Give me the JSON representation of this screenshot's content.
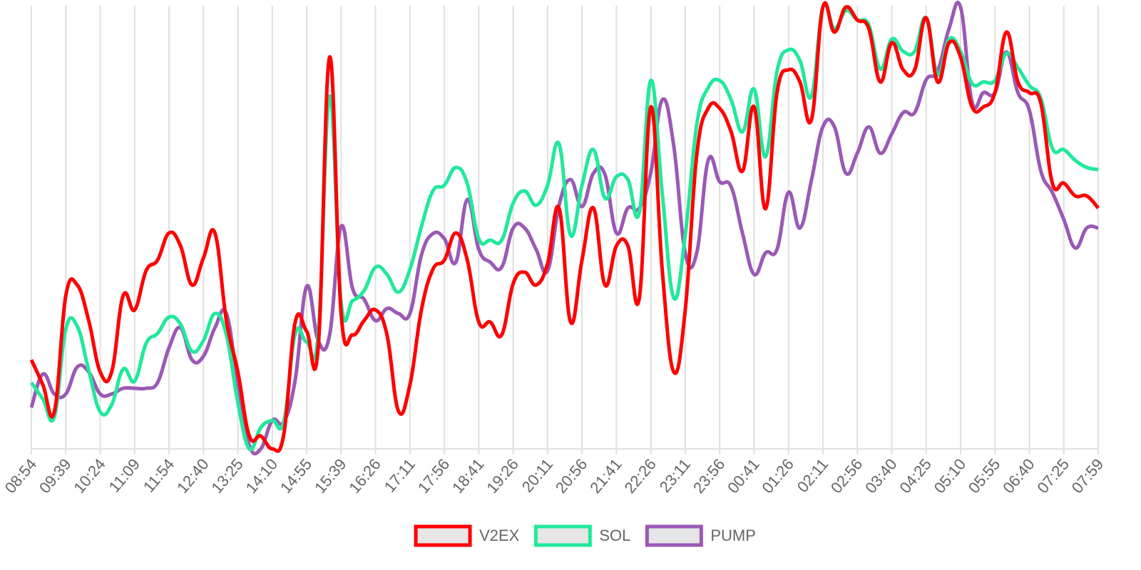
{
  "chart_data": {
    "type": "line",
    "categories": [
      "08:54",
      null,
      null,
      "09:39",
      null,
      null,
      "10:24",
      null,
      null,
      "11:09",
      null,
      null,
      "11:54",
      null,
      null,
      "12:40",
      null,
      null,
      "13:25",
      null,
      null,
      "14:10",
      null,
      null,
      "14:55",
      null,
      null,
      "15:39",
      null,
      null,
      "16:26",
      null,
      null,
      "17:11",
      null,
      null,
      "17:56",
      null,
      null,
      "18:41",
      null,
      null,
      "19:26",
      null,
      null,
      "20:11",
      null,
      null,
      "20:56",
      null,
      null,
      "21:41",
      null,
      null,
      "22:26",
      null,
      null,
      "23:11",
      null,
      null,
      "23:56",
      null,
      null,
      "00:41",
      null,
      null,
      "01:26",
      null,
      null,
      "02:11",
      null,
      null,
      "02:56",
      null,
      null,
      "03:40",
      null,
      null,
      "04:25",
      null,
      null,
      "05:10",
      null,
      null,
      "05:55",
      null,
      null,
      "06:40",
      null,
      null,
      "07:25",
      null,
      null,
      "07:59"
    ],
    "series": [
      {
        "name": "V2EX",
        "color": "#ff0000",
        "values": [
          125,
          90,
          52,
          215,
          230,
          180,
          108,
          108,
          215,
          195,
          250,
          265,
          303,
          285,
          230,
          268,
          303,
          180,
          108,
          18,
          18,
          0,
          20,
          178,
          165,
          142,
          550,
          190,
          160,
          180,
          195,
          160,
          53,
          90,
          195,
          252,
          265,
          303,
          265,
          178,
          178,
          160,
          232,
          248,
          230,
          260,
          338,
          178,
          265,
          338,
          230,
          285,
          285,
          212,
          480,
          250,
          108,
          195,
          412,
          478,
          478,
          445,
          390,
          480,
          337,
          500,
          532,
          515,
          462,
          620,
          585,
          620,
          602,
          590,
          515,
          570,
          532,
          532,
          605,
          515,
          570,
          550,
          480,
          480,
          500,
          585,
          515,
          500,
          485,
          373,
          373,
          355,
          355,
          338
        ]
      },
      {
        "name": "SOL",
        "color": "#22e89c",
        "values": [
          93,
          70,
          45,
          168,
          172,
          110,
          52,
          62,
          112,
          95,
          148,
          162,
          185,
          175,
          137,
          152,
          190,
          160,
          65,
          0,
          30,
          40,
          38,
          162,
          150,
          160,
          495,
          205,
          208,
          222,
          255,
          245,
          220,
          252,
          312,
          362,
          370,
          395,
          372,
          295,
          293,
          293,
          345,
          362,
          342,
          370,
          428,
          300,
          370,
          420,
          352,
          382,
          378,
          332,
          517,
          358,
          212,
          300,
          455,
          507,
          517,
          490,
          445,
          505,
          410,
          530,
          560,
          545,
          495,
          620,
          590,
          615,
          602,
          595,
          533,
          575,
          558,
          558,
          605,
          525,
          575,
          558,
          513,
          515,
          517,
          555,
          535,
          510,
          492,
          422,
          420,
          405,
          395,
          392
        ]
      },
      {
        "name": "PUMP",
        "color": "#9b59b6",
        "values": [
          58,
          105,
          77,
          77,
          115,
          108,
          77,
          77,
          85,
          85,
          85,
          93,
          142,
          170,
          125,
          130,
          170,
          190,
          90,
          5,
          0,
          40,
          38,
          97,
          228,
          152,
          160,
          312,
          225,
          210,
          180,
          197,
          190,
          190,
          272,
          302,
          295,
          262,
          350,
          280,
          262,
          255,
          310,
          310,
          280,
          250,
          342,
          378,
          340,
          387,
          385,
          303,
          338,
          338,
          388,
          490,
          425,
          275,
          275,
          405,
          375,
          368,
          302,
          245,
          275,
          280,
          360,
          310,
          377,
          452,
          452,
          387,
          415,
          452,
          415,
          442,
          472,
          472,
          518,
          530,
          590,
          620,
          487,
          500,
          500,
          557,
          500,
          475,
          390,
          360,
          322,
          282,
          310,
          310
        ]
      }
    ],
    "ylim": [
      0,
      622
    ],
    "grid": true,
    "legend": "bottom"
  }
}
